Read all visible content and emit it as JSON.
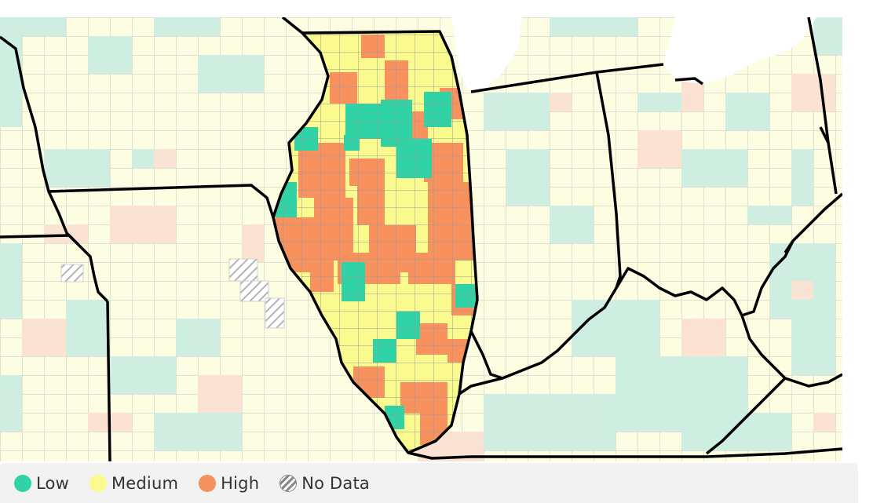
{
  "map": {
    "colors": {
      "low": "#2fd3a6",
      "medium": "#fbfa8e",
      "high": "#f7915d",
      "bg_low": "#c9efe1",
      "bg_medium": "#fdfde0",
      "bg_high": "#fbe0d4",
      "no_data": "#c8c8c8"
    }
  },
  "legend": {
    "items": [
      {
        "key": "low",
        "label": "Low",
        "color": "#2fd3a6"
      },
      {
        "key": "medium",
        "label": "Medium",
        "color": "#fbfa8e"
      },
      {
        "key": "high",
        "label": "High",
        "color": "#f7915d"
      },
      {
        "key": "no-data",
        "label": "No Data",
        "color": "#9a9a9a"
      }
    ]
  }
}
